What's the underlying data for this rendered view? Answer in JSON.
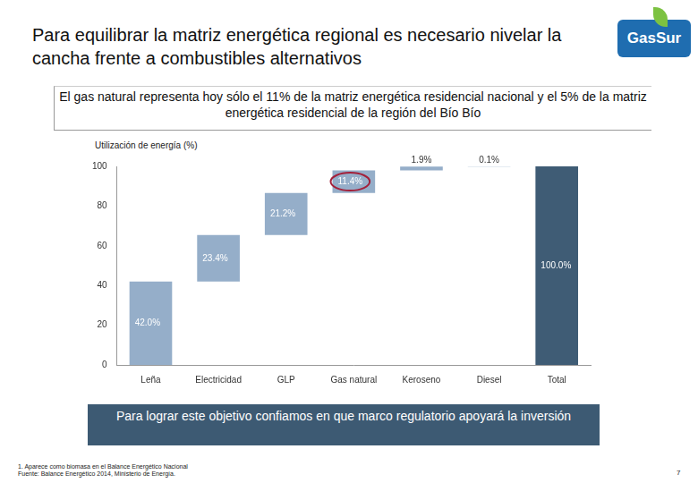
{
  "slide": {
    "title": "Para equilibrar la matriz energética regional es necesario nivelar la cancha frente a combustibles alternativos",
    "logo": "GasSur",
    "subtitle": "El gas natural representa hoy sólo el 11% de la matriz energética residencial nacional y el 5% de la matriz energética residencial de la región del Bío Bío",
    "banner": "Para lograr este objetivo confiamos en que marco regulatorio apoyará la inversión",
    "footnotes": [
      "1. Aparece como biomasa en el Balance Energético Nacional",
      "Fuente: Balance Energético 2014, Ministerio de Energía."
    ],
    "page": 7
  },
  "chart_data": {
    "type": "waterfall",
    "y_label": "Utilización de energía (%)",
    "categories": [
      "Leña",
      "Electricidad",
      "GLP",
      "Gas natural",
      "Keroseno",
      "Diesel",
      "Total"
    ],
    "values": [
      42.0,
      23.4,
      21.2,
      11.4,
      1.9,
      0.1,
      100.0
    ],
    "value_labels": [
      "42.0%",
      "23.4%",
      "21.2%",
      "11.4%",
      "1.9%",
      "0.1%",
      "100.0%"
    ],
    "colors": [
      "#95aec9",
      "#95aec9",
      "#95aec9",
      "#95aec9",
      "#95aec9",
      "#95aec9",
      "#3f5c75"
    ],
    "ylim": [
      0,
      100
    ],
    "yticks": [
      0,
      20,
      40,
      60,
      80,
      100
    ],
    "grid": false,
    "data_labels": true
  }
}
